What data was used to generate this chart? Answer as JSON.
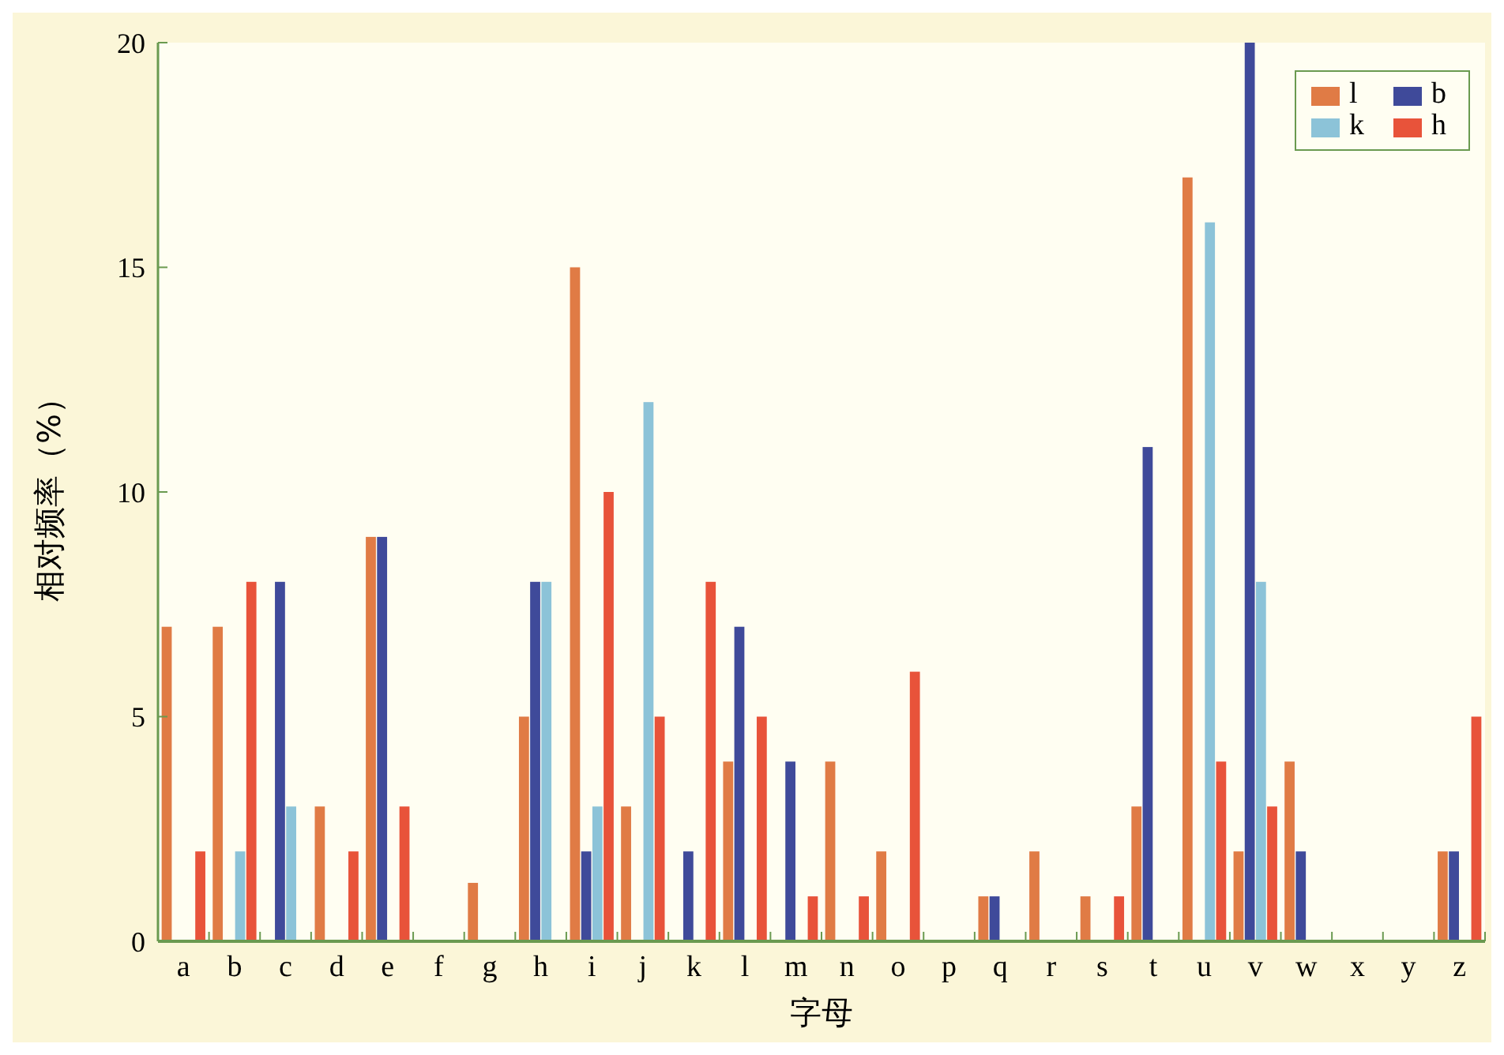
{
  "chart_data": {
    "type": "bar",
    "xlabel": "字母",
    "ylabel": "相对频率（%）",
    "categories": [
      "a",
      "b",
      "c",
      "d",
      "e",
      "f",
      "g",
      "h",
      "i",
      "j",
      "k",
      "l",
      "m",
      "n",
      "o",
      "p",
      "q",
      "r",
      "s",
      "t",
      "u",
      "v",
      "w",
      "x",
      "y",
      "z"
    ],
    "series": [
      {
        "name": "l",
        "color": "#e07b45",
        "values": [
          7,
          7,
          0,
          3,
          9,
          0,
          1.3,
          5,
          15,
          3,
          0,
          4,
          0,
          4,
          2,
          0,
          1,
          2,
          1,
          3,
          17,
          2,
          4,
          0,
          0,
          2
        ]
      },
      {
        "name": "b",
        "color": "#3f4a9a",
        "values": [
          0,
          0,
          8,
          0,
          9,
          0,
          0,
          8,
          2,
          0,
          2,
          7,
          4,
          0,
          0,
          0,
          1,
          0,
          0,
          11,
          0,
          20,
          2,
          0,
          0,
          2
        ]
      },
      {
        "name": "k",
        "color": "#8cc3d8",
        "values": [
          0,
          2,
          3,
          0,
          0,
          0,
          0,
          8,
          3,
          12,
          0,
          0,
          0,
          0,
          0,
          0,
          0,
          0,
          0,
          0,
          16,
          8,
          0,
          0,
          0,
          0
        ]
      },
      {
        "name": "h",
        "color": "#e8533a",
        "values": [
          2,
          8,
          0,
          2,
          3,
          0,
          0,
          0,
          10,
          5,
          8,
          5,
          1,
          1,
          6,
          0,
          0,
          0,
          1,
          0,
          4,
          3,
          0,
          0,
          0,
          5
        ]
      }
    ],
    "ylim": [
      0,
      20
    ],
    "yticks": [
      0,
      5,
      10,
      15,
      20
    ],
    "grid": false,
    "legend": "top right"
  }
}
